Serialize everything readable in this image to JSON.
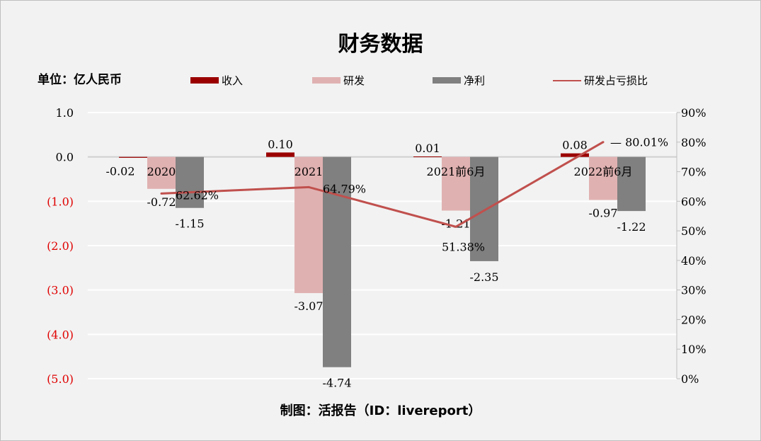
{
  "title": "财务数据",
  "unit_label": "单位：亿人民币",
  "footer": "制图：活报告（ID：livereport）",
  "colors": {
    "revenue": "#9b0000",
    "rd": "#e0b1b1",
    "net": "#808080",
    "ratio": "#c0504d",
    "negative_tick": "#e00000"
  },
  "chart_data": {
    "type": "bar",
    "categories": [
      "2020",
      "2021",
      "2021前6月",
      "2022前6月"
    ],
    "series": [
      {
        "name": "收入",
        "type": "bar",
        "values": [
          -0.02,
          0.1,
          0.01,
          0.08
        ],
        "labels": [
          "-0.02",
          "0.10",
          "0.01",
          "0.08"
        ]
      },
      {
        "name": "研发",
        "type": "bar",
        "values": [
          -0.72,
          -3.07,
          -1.21,
          -0.97
        ],
        "labels": [
          "-0.72",
          "-3.07",
          "-1.21",
          "-0.97"
        ]
      },
      {
        "name": "净利",
        "type": "bar",
        "values": [
          -1.15,
          -4.74,
          -2.35,
          -1.22
        ],
        "labels": [
          "-1.15",
          "-4.74",
          "-2.35",
          "-1.22"
        ]
      },
      {
        "name": "研发占亏损比",
        "type": "line",
        "axis": "right",
        "values": [
          62.62,
          64.79,
          51.38,
          80.01
        ],
        "labels": [
          "62.62%",
          "64.79%",
          "51.38%",
          "80.01%"
        ]
      }
    ],
    "y_left": {
      "range": [
        -5,
        1
      ],
      "ticks": [
        "1.0",
        "0.0",
        "(1.0)",
        "(2.0)",
        "(3.0)",
        "(4.0)",
        "(5.0)"
      ]
    },
    "y_right": {
      "range": [
        0,
        90
      ],
      "ticks": [
        "90%",
        "80%",
        "70%",
        "60%",
        "50%",
        "40%",
        "30%",
        "20%",
        "10%",
        "0%"
      ]
    },
    "grid": true,
    "legend": "top"
  }
}
